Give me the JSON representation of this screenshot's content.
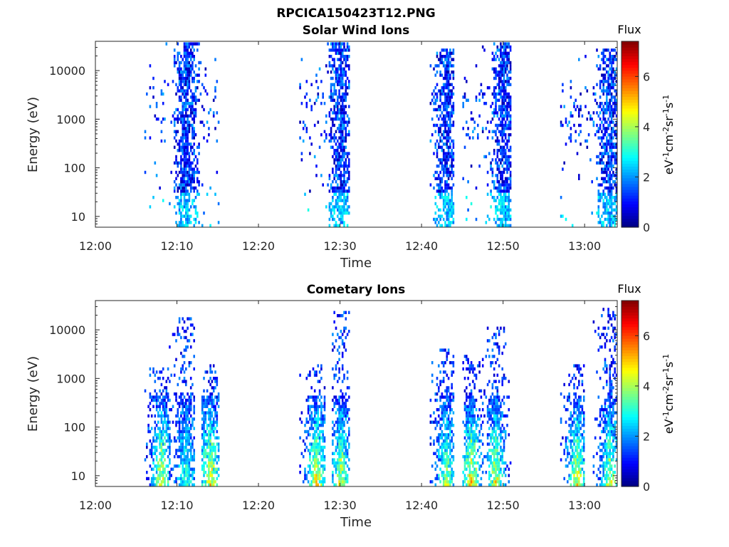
{
  "figure": {
    "title": "RPCICA150423T12.PNG"
  },
  "chart_data": [
    {
      "type": "heatmap",
      "title": "Solar Wind Ions",
      "xlabel": "Time",
      "ylabel": "Energy (eV)",
      "xlim": [
        "12:00",
        "13:04"
      ],
      "ylim_eV": [
        6,
        40000
      ],
      "yscale": "log",
      "xticks": [
        "12:00",
        "12:10",
        "12:20",
        "12:30",
        "12:40",
        "12:50",
        "13:00"
      ],
      "yticks": [
        "10",
        "100",
        "1000",
        "10000"
      ],
      "colorbar": {
        "title": "Flux",
        "label": "eV-1cm-2sr-1s-1",
        "label_display": {
          "base1": "eV",
          "sup1": "-1",
          "base2": "cm",
          "sup2": "-2",
          "base3": "sr",
          "sup3": "-1",
          "base4": "s",
          "sup4": "-1"
        },
        "range": [
          0,
          7.4
        ],
        "ticks": [
          "0",
          "2",
          "4",
          "6"
        ],
        "colormap": "jet"
      },
      "bursts": [
        {
          "start": "12:06",
          "end": "12:15",
          "peak": "12:11",
          "emin_eV": 6,
          "emax_eV": 40000,
          "max_flux": 3.0
        },
        {
          "start": "12:25",
          "end": "12:31",
          "peak": "12:30",
          "emin_eV": 6,
          "emax_eV": 40000,
          "max_flux": 3.0
        },
        {
          "start": "12:41",
          "end": "12:44",
          "peak": "12:43",
          "emin_eV": 6,
          "emax_eV": 30000,
          "max_flux": 3.0
        },
        {
          "start": "12:45",
          "end": "12:51",
          "peak": "12:50",
          "emin_eV": 6,
          "emax_eV": 40000,
          "max_flux": 3.0
        },
        {
          "start": "12:57",
          "end": "13:04",
          "peak": "13:03",
          "emin_eV": 6,
          "emax_eV": 30000,
          "max_flux": 3.0
        }
      ]
    },
    {
      "type": "heatmap",
      "title": "Cometary Ions",
      "xlabel": "Time",
      "ylabel": "Energy (eV)",
      "xlim": [
        "12:00",
        "13:04"
      ],
      "ylim_eV": [
        6,
        40000
      ],
      "yscale": "log",
      "xticks": [
        "12:00",
        "12:10",
        "12:20",
        "12:30",
        "12:40",
        "12:50",
        "13:00"
      ],
      "yticks": [
        "10",
        "100",
        "1000",
        "10000"
      ],
      "colorbar": {
        "title": "Flux",
        "label": "eV-1cm-2sr-1s-1",
        "label_display": {
          "base1": "eV",
          "sup1": "-1",
          "base2": "cm",
          "sup2": "-2",
          "base3": "sr",
          "sup3": "-1",
          "base4": "s",
          "sup4": "-1"
        },
        "range": [
          0,
          7.4
        ],
        "ticks": [
          "0",
          "2",
          "4",
          "6"
        ],
        "colormap": "jet"
      },
      "bursts": [
        {
          "start": "12:06",
          "end": "12:09",
          "peak": "12:08",
          "emin_eV": 6,
          "emax_eV": 2000,
          "max_flux": 5.2
        },
        {
          "start": "12:09",
          "end": "12:12",
          "peak": "12:11",
          "emin_eV": 6,
          "emax_eV": 18000,
          "max_flux": 3.6
        },
        {
          "start": "12:13",
          "end": "12:15",
          "peak": "12:14",
          "emin_eV": 6,
          "emax_eV": 2000,
          "max_flux": 5.6
        },
        {
          "start": "12:25",
          "end": "12:28",
          "peak": "12:27",
          "emin_eV": 6,
          "emax_eV": 2000,
          "max_flux": 5.8
        },
        {
          "start": "12:29",
          "end": "12:31",
          "peak": "12:30",
          "emin_eV": 6,
          "emax_eV": 25000,
          "max_flux": 5.2
        },
        {
          "start": "12:41",
          "end": "12:44",
          "peak": "12:43",
          "emin_eV": 6,
          "emax_eV": 4000,
          "max_flux": 4.6
        },
        {
          "start": "12:45",
          "end": "12:48",
          "peak": "12:46",
          "emin_eV": 6,
          "emax_eV": 3000,
          "max_flux": 5.8
        },
        {
          "start": "12:48",
          "end": "12:51",
          "peak": "12:49",
          "emin_eV": 6,
          "emax_eV": 12000,
          "max_flux": 5.4
        },
        {
          "start": "12:57",
          "end": "13:00",
          "peak": "12:59",
          "emin_eV": 6,
          "emax_eV": 2000,
          "max_flux": 5.4
        },
        {
          "start": "13:01",
          "end": "13:04",
          "peak": "13:03",
          "emin_eV": 6,
          "emax_eV": 30000,
          "max_flux": 5.0
        }
      ]
    }
  ]
}
